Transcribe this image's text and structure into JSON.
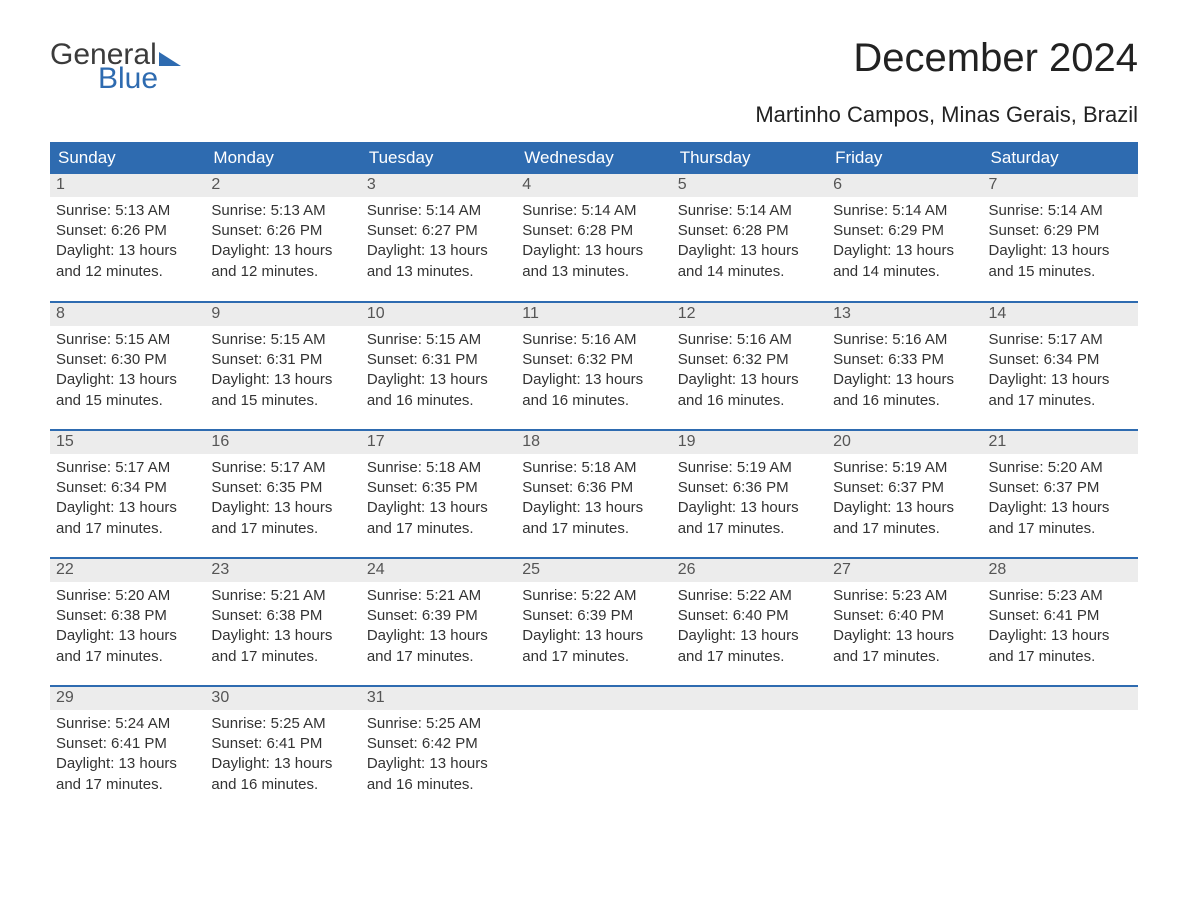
{
  "branding": {
    "logo_word1": "General",
    "logo_word2": "Blue",
    "logo_color_primary": "#3b3b3b",
    "logo_color_accent": "#2e6bb0"
  },
  "title": "December 2024",
  "subtitle": "Martinho Campos, Minas Gerais, Brazil",
  "colors": {
    "header_bg": "#2e6bb0",
    "header_text": "#ffffff",
    "daynum_bg": "#ececec",
    "daynum_text": "#555555",
    "body_text": "#333333",
    "week_divider": "#2e6bb0",
    "page_bg": "#ffffff"
  },
  "typography": {
    "title_fontsize": 40,
    "subtitle_fontsize": 22,
    "header_fontsize": 17,
    "daynum_fontsize": 16,
    "body_fontsize": 15
  },
  "labels": {
    "sunrise": "Sunrise:",
    "sunset": "Sunset:",
    "daylight": "Daylight:"
  },
  "weekday_headers": [
    "Sunday",
    "Monday",
    "Tuesday",
    "Wednesday",
    "Thursday",
    "Friday",
    "Saturday"
  ],
  "weeks": [
    [
      {
        "day": "1",
        "sunrise": "5:13 AM",
        "sunset": "6:26 PM",
        "daylight": "13 hours and 12 minutes."
      },
      {
        "day": "2",
        "sunrise": "5:13 AM",
        "sunset": "6:26 PM",
        "daylight": "13 hours and 12 minutes."
      },
      {
        "day": "3",
        "sunrise": "5:14 AM",
        "sunset": "6:27 PM",
        "daylight": "13 hours and 13 minutes."
      },
      {
        "day": "4",
        "sunrise": "5:14 AM",
        "sunset": "6:28 PM",
        "daylight": "13 hours and 13 minutes."
      },
      {
        "day": "5",
        "sunrise": "5:14 AM",
        "sunset": "6:28 PM",
        "daylight": "13 hours and 14 minutes."
      },
      {
        "day": "6",
        "sunrise": "5:14 AM",
        "sunset": "6:29 PM",
        "daylight": "13 hours and 14 minutes."
      },
      {
        "day": "7",
        "sunrise": "5:14 AM",
        "sunset": "6:29 PM",
        "daylight": "13 hours and 15 minutes."
      }
    ],
    [
      {
        "day": "8",
        "sunrise": "5:15 AM",
        "sunset": "6:30 PM",
        "daylight": "13 hours and 15 minutes."
      },
      {
        "day": "9",
        "sunrise": "5:15 AM",
        "sunset": "6:31 PM",
        "daylight": "13 hours and 15 minutes."
      },
      {
        "day": "10",
        "sunrise": "5:15 AM",
        "sunset": "6:31 PM",
        "daylight": "13 hours and 16 minutes."
      },
      {
        "day": "11",
        "sunrise": "5:16 AM",
        "sunset": "6:32 PM",
        "daylight": "13 hours and 16 minutes."
      },
      {
        "day": "12",
        "sunrise": "5:16 AM",
        "sunset": "6:32 PM",
        "daylight": "13 hours and 16 minutes."
      },
      {
        "day": "13",
        "sunrise": "5:16 AM",
        "sunset": "6:33 PM",
        "daylight": "13 hours and 16 minutes."
      },
      {
        "day": "14",
        "sunrise": "5:17 AM",
        "sunset": "6:34 PM",
        "daylight": "13 hours and 17 minutes."
      }
    ],
    [
      {
        "day": "15",
        "sunrise": "5:17 AM",
        "sunset": "6:34 PM",
        "daylight": "13 hours and 17 minutes."
      },
      {
        "day": "16",
        "sunrise": "5:17 AM",
        "sunset": "6:35 PM",
        "daylight": "13 hours and 17 minutes."
      },
      {
        "day": "17",
        "sunrise": "5:18 AM",
        "sunset": "6:35 PM",
        "daylight": "13 hours and 17 minutes."
      },
      {
        "day": "18",
        "sunrise": "5:18 AM",
        "sunset": "6:36 PM",
        "daylight": "13 hours and 17 minutes."
      },
      {
        "day": "19",
        "sunrise": "5:19 AM",
        "sunset": "6:36 PM",
        "daylight": "13 hours and 17 minutes."
      },
      {
        "day": "20",
        "sunrise": "5:19 AM",
        "sunset": "6:37 PM",
        "daylight": "13 hours and 17 minutes."
      },
      {
        "day": "21",
        "sunrise": "5:20 AM",
        "sunset": "6:37 PM",
        "daylight": "13 hours and 17 minutes."
      }
    ],
    [
      {
        "day": "22",
        "sunrise": "5:20 AM",
        "sunset": "6:38 PM",
        "daylight": "13 hours and 17 minutes."
      },
      {
        "day": "23",
        "sunrise": "5:21 AM",
        "sunset": "6:38 PM",
        "daylight": "13 hours and 17 minutes."
      },
      {
        "day": "24",
        "sunrise": "5:21 AM",
        "sunset": "6:39 PM",
        "daylight": "13 hours and 17 minutes."
      },
      {
        "day": "25",
        "sunrise": "5:22 AM",
        "sunset": "6:39 PM",
        "daylight": "13 hours and 17 minutes."
      },
      {
        "day": "26",
        "sunrise": "5:22 AM",
        "sunset": "6:40 PM",
        "daylight": "13 hours and 17 minutes."
      },
      {
        "day": "27",
        "sunrise": "5:23 AM",
        "sunset": "6:40 PM",
        "daylight": "13 hours and 17 minutes."
      },
      {
        "day": "28",
        "sunrise": "5:23 AM",
        "sunset": "6:41 PM",
        "daylight": "13 hours and 17 minutes."
      }
    ],
    [
      {
        "day": "29",
        "sunrise": "5:24 AM",
        "sunset": "6:41 PM",
        "daylight": "13 hours and 17 minutes."
      },
      {
        "day": "30",
        "sunrise": "5:25 AM",
        "sunset": "6:41 PM",
        "daylight": "13 hours and 16 minutes."
      },
      {
        "day": "31",
        "sunrise": "5:25 AM",
        "sunset": "6:42 PM",
        "daylight": "13 hours and 16 minutes."
      },
      null,
      null,
      null,
      null
    ]
  ]
}
